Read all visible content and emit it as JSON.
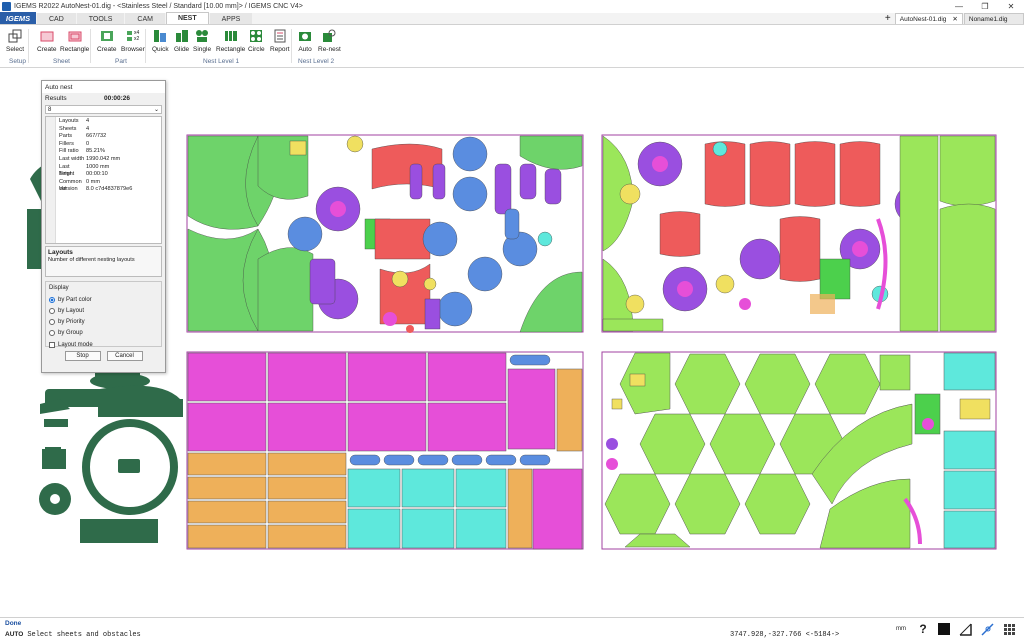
{
  "window": {
    "title": "IGEMS R2022  AutoNest-01.dig - <Stainless Steel / Standard [10.00 mm]> / IGEMS CNC V4>"
  },
  "ribbon_tabs": [
    {
      "label": "CAD"
    },
    {
      "label": "TOOLS"
    },
    {
      "label": "CAM"
    },
    {
      "label": "NEST"
    },
    {
      "label": "APPS"
    }
  ],
  "brand": "IGEMS",
  "doc_tabs": [
    {
      "label": "AutoNest-01.dig"
    },
    {
      "label": "Noname1.dig"
    }
  ],
  "ribbon": {
    "buttons": [
      {
        "label": "Select",
        "color": "#555555"
      },
      {
        "label": "Create",
        "color": "#d94b6a"
      },
      {
        "label": "Rectangle",
        "color": "#d94b6a"
      },
      {
        "label": "Create",
        "color": "#2a8a3a"
      },
      {
        "label": "Browser",
        "color": "#2a8a3a"
      },
      {
        "label": "Quick",
        "color": "#2a8a3a"
      },
      {
        "label": "Glide",
        "color": "#2a8a3a"
      },
      {
        "label": "Single",
        "color": "#2a8a3a"
      },
      {
        "label": "Rectangle",
        "color": "#2a8a3a"
      },
      {
        "label": "Circle",
        "color": "#2a8a3a"
      },
      {
        "label": "Report",
        "color": "#555555"
      },
      {
        "label": "Auto",
        "color": "#2a8a3a"
      },
      {
        "label": "Re-nest",
        "color": "#2a8a3a"
      }
    ],
    "groups": [
      {
        "label": "Setup"
      },
      {
        "label": "Sheet"
      },
      {
        "label": "Part"
      },
      {
        "label": "Nest Level 1"
      },
      {
        "label": "Nest Level 2"
      }
    ],
    "browser_badges": [
      "x4",
      "x2"
    ]
  },
  "dialog": {
    "title": "Auto nest",
    "results_label": "Results",
    "elapsed": "00:00:26",
    "selected": "8",
    "properties": [
      {
        "key": "Layouts",
        "value": "4"
      },
      {
        "key": "Sheets",
        "value": "4"
      },
      {
        "key": "Parts",
        "value": "667/732"
      },
      {
        "key": "Fillers",
        "value": "0"
      },
      {
        "key": "Fill ratio",
        "value": "85.21%"
      },
      {
        "key": "Last width",
        "value": "1990.042 mm"
      },
      {
        "key": "Last height",
        "value": "1000 mm"
      },
      {
        "key": "Time",
        "value": "00:00:10"
      },
      {
        "key": "Common cut",
        "value": "0 mm"
      },
      {
        "key": "Version",
        "value": "8.0 c7d4837879e6"
      }
    ],
    "desc_title": "Layouts",
    "desc_text": "Number of different nesting layouts",
    "display_legend": "Display",
    "display_options": [
      {
        "label": "by Part color",
        "checked": true
      },
      {
        "label": "by Layout",
        "checked": false
      },
      {
        "label": "by Priority",
        "checked": false
      },
      {
        "label": "by Group",
        "checked": false
      }
    ],
    "layout_mode_label": "Layout mode",
    "stop_label": "Stop",
    "cancel_label": "Cancel"
  },
  "status": {
    "done": "Done",
    "mode": "AUTO",
    "prompt": "Select sheets and obstacles",
    "coordinates": "3747.928,-327.766 <-5184->",
    "unit": "mm"
  },
  "colors": {
    "green": "#6ed36a",
    "dark_green": "#2f6b4a",
    "purple": "#9a4fe0",
    "blue": "#5a8de0",
    "red": "#ee5b5b",
    "magenta": "#e64fd8",
    "orange": "#eeb05a",
    "cyan": "#5ee8dc",
    "lime": "#9be65a",
    "yellow": "#f0e060",
    "sheet_border": "#a040a0"
  }
}
